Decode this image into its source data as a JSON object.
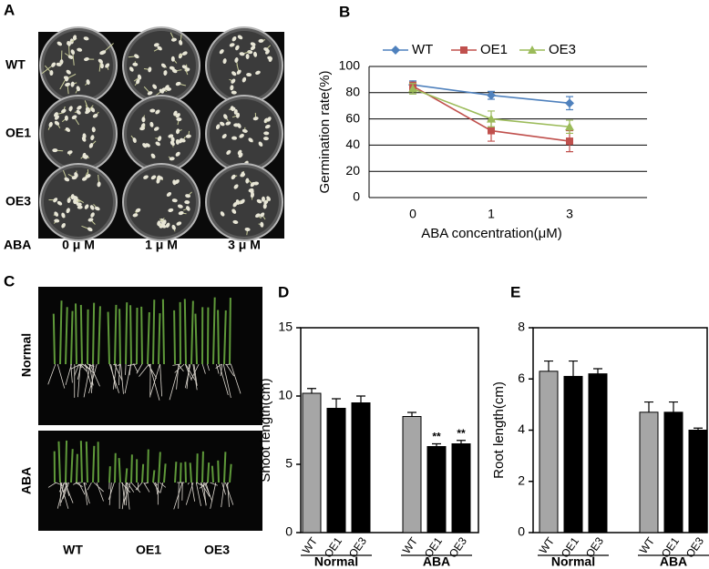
{
  "panels": {
    "photo_a": {
      "label": "A",
      "row_labels": [
        "WT",
        "OE1",
        "OE3"
      ],
      "column_header": "ABA",
      "column_labels": [
        "0 μ M",
        "1 μ M",
        "3 μ M"
      ]
    },
    "photo_c": {
      "label": "C",
      "row_labels": [
        "Normal",
        "ABA"
      ],
      "column_labels": [
        "WT",
        "OE1",
        "OE3"
      ]
    }
  },
  "chart_data": [
    {
      "type": "line",
      "panel_label": "B",
      "categories": [
        "0",
        "1",
        "3"
      ],
      "x_label": "ABA concentration(μM)",
      "y_label": "Germination rate(%)",
      "ylim": [
        0,
        100
      ],
      "yticks": [
        0,
        20,
        40,
        60,
        80,
        100
      ],
      "grid": true,
      "legend": "top",
      "series": [
        {
          "name": "WT",
          "color": "#4f81bd",
          "marker": "diamond",
          "values": [
            86,
            78,
            72
          ],
          "errors": [
            3,
            3,
            5
          ]
        },
        {
          "name": "OE1",
          "color": "#c0504d",
          "marker": "square",
          "values": [
            85,
            51,
            43
          ],
          "errors": [
            3,
            8,
            8
          ]
        },
        {
          "name": "OE3",
          "color": "#9bbb59",
          "marker": "triangle",
          "values": [
            83,
            60,
            54
          ],
          "errors": [
            4,
            6,
            5
          ]
        }
      ]
    },
    {
      "type": "bar",
      "panel_label": "D",
      "y_label": "Shoot length(cm)",
      "categories": [
        "WT",
        "OE1",
        "OE3"
      ],
      "colors": [
        "#a6a6a6",
        "#000000",
        "#000000"
      ],
      "ylim": [
        0,
        15
      ],
      "yticks": [
        0,
        5,
        10,
        15
      ],
      "series": [
        {
          "name": "Normal",
          "values": [
            10.2,
            9.1,
            9.5
          ],
          "errors": [
            0.35,
            0.7,
            0.5
          ]
        },
        {
          "name": "ABA",
          "values": [
            8.5,
            6.3,
            6.5
          ],
          "errors": [
            0.3,
            0.2,
            0.25
          ],
          "annotations": [
            null,
            "**",
            "**"
          ]
        }
      ]
    },
    {
      "type": "bar",
      "panel_label": "E",
      "y_label": "Root length(cm)",
      "categories": [
        "WT",
        "OE1",
        "OE3"
      ],
      "colors": [
        "#a6a6a6",
        "#000000",
        "#000000"
      ],
      "ylim": [
        0,
        8
      ],
      "yticks": [
        0,
        2,
        4,
        6,
        8
      ],
      "series": [
        {
          "name": "Normal",
          "values": [
            6.3,
            6.1,
            6.2
          ],
          "errors": [
            0.4,
            0.6,
            0.2
          ]
        },
        {
          "name": "ABA",
          "values": [
            4.7,
            4.7,
            4.0
          ],
          "errors": [
            0.4,
            0.4,
            0.08
          ]
        }
      ]
    }
  ]
}
